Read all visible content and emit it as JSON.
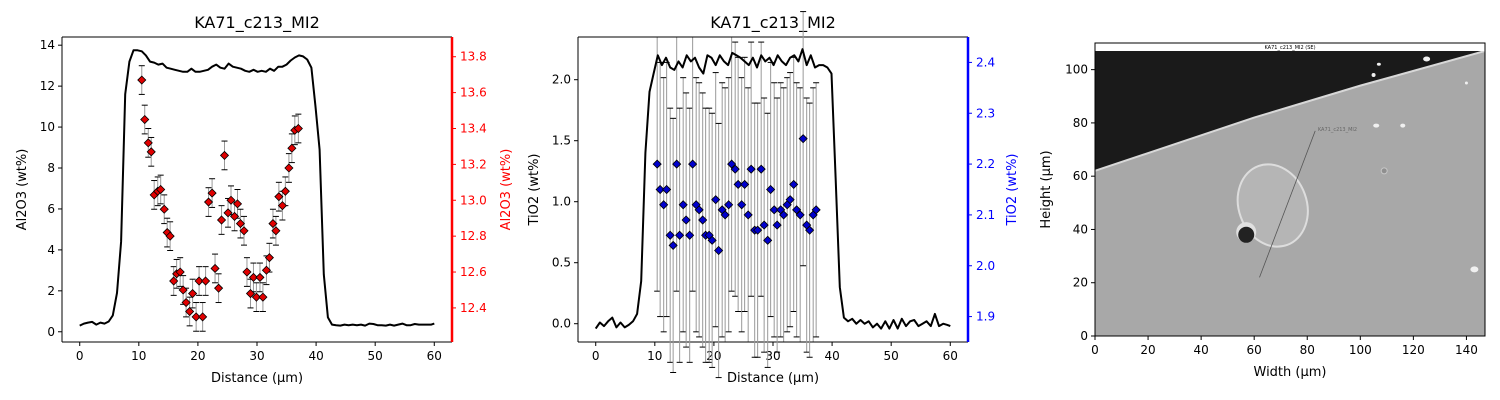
{
  "figure": {
    "panels": [
      "al2o3-profile",
      "tio2-profile",
      "sem-image"
    ]
  },
  "chart_data": [
    {
      "id": "al2o3-profile",
      "type": "line",
      "title": "KA71_c213_MI2",
      "xlabel": "Distance (µm)",
      "ylabel": "Al2O3 (wt%)",
      "y2label": "Al2O3 (wt%)",
      "xlim": [
        -3,
        63
      ],
      "ylim": [
        -0.5,
        14.4
      ],
      "y2lim": [
        12.21,
        13.91
      ],
      "xticks": [
        0,
        10,
        20,
        30,
        40,
        50,
        60
      ],
      "yticks": [
        0,
        2,
        4,
        6,
        8,
        10,
        12,
        14
      ],
      "y2ticks": [
        "12.4",
        "12.6",
        "12.8",
        "13.0",
        "13.2",
        "13.4",
        "13.6",
        "13.8"
      ],
      "colors": {
        "line": "#000000",
        "markers": "#e00000",
        "y2axis": "#ff0000",
        "errorbars": "#999999"
      },
      "grid": false,
      "series": [
        {
          "kind": "line",
          "axis": "left",
          "x": [
            0,
            0.7,
            1.4,
            2.1,
            2.8,
            3.5,
            4.2,
            4.9,
            5.6,
            6.3,
            7.0,
            7.7,
            8.4,
            9.1,
            9.8,
            10.5,
            11.2,
            11.9,
            12.6,
            13.3,
            14.0,
            14.7,
            15.4,
            16.1,
            16.8,
            17.5,
            18.2,
            18.9,
            19.6,
            20.3,
            21.0,
            21.7,
            22.4,
            23.1,
            23.8,
            24.5,
            25.2,
            25.9,
            26.6,
            27.3,
            28.0,
            28.7,
            29.4,
            30.1,
            30.8,
            31.5,
            32.2,
            32.9,
            33.6,
            34.3,
            35.0,
            35.7,
            36.4,
            37.1,
            37.8,
            38.5,
            39.2,
            39.9,
            40.6,
            41.3,
            42.0,
            42.7,
            43.4,
            44.1,
            44.8,
            45.5,
            46.2,
            46.9,
            47.6,
            48.3,
            49.0,
            49.7,
            50.4,
            51.1,
            51.8,
            52.5,
            53.2,
            53.9,
            54.6,
            55.3,
            56.0,
            56.7,
            57.4,
            58.1,
            58.8,
            59.5,
            60.0
          ],
          "values": [
            0.3,
            0.4,
            0.45,
            0.48,
            0.35,
            0.45,
            0.4,
            0.5,
            0.8,
            1.9,
            4.4,
            11.6,
            13.2,
            13.75,
            13.75,
            13.7,
            13.5,
            13.2,
            13.15,
            13.05,
            13.1,
            12.9,
            12.85,
            12.8,
            12.75,
            12.7,
            12.7,
            12.85,
            12.7,
            12.7,
            12.75,
            12.8,
            12.95,
            13.05,
            12.9,
            12.85,
            13.1,
            12.95,
            12.9,
            12.85,
            12.75,
            12.7,
            12.8,
            12.7,
            12.75,
            12.7,
            12.85,
            12.75,
            12.95,
            12.95,
            13.05,
            13.25,
            13.4,
            13.5,
            13.45,
            13.3,
            12.9,
            11.0,
            8.9,
            2.8,
            0.7,
            0.35,
            0.32,
            0.3,
            0.35,
            0.32,
            0.35,
            0.32,
            0.35,
            0.3,
            0.4,
            0.38,
            0.32,
            0.32,
            0.3,
            0.35,
            0.3,
            0.35,
            0.4,
            0.32,
            0.32,
            0.38,
            0.35,
            0.35,
            0.35,
            0.35,
            0.4
          ]
        },
        {
          "kind": "scatter_errorbar",
          "axis": "right",
          "x": [
            10.5,
            11.0,
            11.6,
            12.1,
            12.6,
            13.2,
            13.7,
            14.3,
            14.8,
            15.3,
            15.9,
            16.4,
            17.0,
            17.5,
            18.0,
            18.6,
            19.1,
            19.7,
            20.2,
            20.8,
            21.3,
            21.8,
            22.4,
            22.9,
            23.5,
            24.0,
            24.5,
            25.1,
            25.6,
            26.2,
            26.7,
            27.2,
            27.8,
            28.3,
            28.9,
            29.4,
            29.9,
            30.5,
            31.0,
            31.6,
            32.1,
            32.7,
            33.2,
            33.7,
            34.3,
            34.8,
            35.4,
            35.9,
            36.4,
            37.0
          ],
          "values": [
            13.67,
            13.45,
            13.32,
            13.27,
            13.03,
            13.05,
            13.06,
            12.95,
            12.82,
            12.8,
            12.55,
            12.59,
            12.6,
            12.5,
            12.43,
            12.38,
            12.48,
            12.35,
            12.55,
            12.35,
            12.55,
            12.99,
            13.04,
            12.62,
            12.51,
            12.89,
            13.25,
            12.93,
            13.0,
            12.91,
            12.98,
            12.87,
            12.83,
            12.6,
            12.48,
            12.57,
            12.46,
            12.57,
            12.46,
            12.61,
            12.68,
            12.87,
            12.83,
            13.02,
            12.97,
            13.05,
            13.18,
            13.29,
            13.39,
            13.4
          ],
          "errors": [
            0.08,
            0.08,
            0.08,
            0.08,
            0.08,
            0.08,
            0.08,
            0.08,
            0.08,
            0.08,
            0.08,
            0.08,
            0.08,
            0.08,
            0.08,
            0.08,
            0.08,
            0.08,
            0.08,
            0.08,
            0.08,
            0.08,
            0.08,
            0.08,
            0.08,
            0.08,
            0.08,
            0.08,
            0.08,
            0.08,
            0.08,
            0.08,
            0.08,
            0.08,
            0.08,
            0.08,
            0.08,
            0.08,
            0.08,
            0.08,
            0.08,
            0.08,
            0.08,
            0.08,
            0.08,
            0.08,
            0.08,
            0.08,
            0.08,
            0.08
          ]
        }
      ]
    },
    {
      "id": "tio2-profile",
      "type": "line",
      "title": "KA71_c213_MI2",
      "xlabel": "Distance (µm)",
      "ylabel": "TiO2 (wt%)",
      "y2label": "TiO2 (wt%)",
      "xlim": [
        -3,
        63
      ],
      "ylim": [
        -0.15,
        2.35
      ],
      "y2lim": [
        1.85,
        2.45
      ],
      "xticks": [
        0,
        10,
        20,
        30,
        40,
        50,
        60
      ],
      "yticks": [
        "0.0",
        "0.5",
        "1.0",
        "1.5",
        "2.0"
      ],
      "y2ticks": [
        "1.9",
        "2.0",
        "2.1",
        "2.2",
        "2.3",
        "2.4"
      ],
      "colors": {
        "line": "#000000",
        "markers": "#0000cc",
        "y2axis": "#0000ff",
        "errorbars": "#999999"
      },
      "grid": false,
      "series": [
        {
          "kind": "line",
          "axis": "left",
          "x": [
            0,
            0.7,
            1.4,
            2.1,
            2.8,
            3.5,
            4.2,
            4.9,
            5.6,
            6.3,
            7.0,
            7.7,
            8.4,
            9.1,
            9.8,
            10.5,
            11.2,
            11.9,
            12.6,
            13.3,
            14.0,
            14.7,
            15.4,
            16.1,
            16.8,
            17.5,
            18.2,
            18.9,
            19.6,
            20.3,
            21.0,
            21.7,
            22.4,
            23.1,
            23.8,
            24.5,
            25.2,
            25.9,
            26.6,
            27.3,
            28.0,
            28.7,
            29.4,
            30.1,
            30.8,
            31.5,
            32.2,
            32.9,
            33.6,
            34.3,
            35.0,
            35.7,
            36.4,
            37.1,
            37.8,
            38.5,
            39.2,
            39.9,
            40.6,
            41.3,
            42.0,
            42.7,
            43.4,
            44.1,
            44.8,
            45.5,
            46.2,
            46.9,
            47.6,
            48.3,
            49.0,
            49.7,
            50.4,
            51.1,
            51.8,
            52.5,
            53.2,
            53.9,
            54.6,
            55.3,
            56.0,
            56.7,
            57.4,
            58.1,
            58.8,
            59.5,
            60.0
          ],
          "values": [
            -0.04,
            0.01,
            -0.02,
            0.02,
            0.05,
            -0.03,
            0.01,
            -0.03,
            -0.01,
            0.02,
            0.08,
            0.35,
            1.4,
            1.9,
            2.05,
            2.2,
            2.12,
            2.18,
            2.1,
            2.08,
            2.15,
            2.1,
            2.2,
            2.15,
            2.18,
            2.1,
            2.05,
            2.2,
            2.18,
            2.12,
            2.2,
            2.15,
            2.12,
            2.22,
            2.2,
            2.18,
            2.15,
            2.12,
            2.18,
            2.1,
            2.2,
            2.15,
            2.18,
            2.12,
            2.2,
            2.15,
            2.12,
            2.18,
            2.2,
            2.15,
            2.25,
            2.12,
            2.2,
            2.1,
            2.12,
            2.12,
            2.1,
            2.05,
            1.2,
            0.3,
            0.05,
            0.02,
            0.04,
            0.0,
            0.03,
            0.0,
            0.02,
            -0.03,
            0.0,
            -0.04,
            0.02,
            -0.04,
            0.03,
            -0.04,
            0.04,
            -0.02,
            0.02,
            0.03,
            -0.02,
            0.0,
            0.02,
            -0.02,
            0.08,
            -0.02,
            0.0,
            -0.01,
            -0.02
          ]
        },
        {
          "kind": "scatter_errorbar",
          "axis": "right",
          "x": [
            10.4,
            10.9,
            11.5,
            12.0,
            12.6,
            13.1,
            13.7,
            14.2,
            14.8,
            15.3,
            15.9,
            16.4,
            17.0,
            17.5,
            18.1,
            18.6,
            19.2,
            19.7,
            20.3,
            20.8,
            21.4,
            21.9,
            22.5,
            23.0,
            23.6,
            24.1,
            24.7,
            25.2,
            25.8,
            26.3,
            26.9,
            27.4,
            28.0,
            28.5,
            29.1,
            29.6,
            30.2,
            30.7,
            31.3,
            31.8,
            32.4,
            32.9,
            33.5,
            34.0,
            34.6,
            35.1,
            35.7,
            36.2,
            36.8,
            37.3
          ],
          "values": [
            2.2,
            2.15,
            2.12,
            2.15,
            2.06,
            2.04,
            2.2,
            2.06,
            2.12,
            2.09,
            2.06,
            2.2,
            2.12,
            2.11,
            2.09,
            2.06,
            2.06,
            2.05,
            2.13,
            2.03,
            2.11,
            2.1,
            2.12,
            2.2,
            2.19,
            2.16,
            2.12,
            2.16,
            2.1,
            2.19,
            2.07,
            2.07,
            2.19,
            2.08,
            2.05,
            2.15,
            2.11,
            2.08,
            2.11,
            2.1,
            2.12,
            2.13,
            2.16,
            2.11,
            2.1,
            2.25,
            2.08,
            2.07,
            2.1,
            2.11
          ],
          "errors": [
            0.25,
            0.25,
            0.25,
            0.25,
            0.25,
            0.25,
            0.25,
            0.25,
            0.25,
            0.25,
            0.25,
            0.25,
            0.25,
            0.25,
            0.25,
            0.25,
            0.25,
            0.25,
            0.25,
            0.25,
            0.25,
            0.25,
            0.25,
            0.25,
            0.25,
            0.25,
            0.25,
            0.25,
            0.25,
            0.25,
            0.25,
            0.25,
            0.25,
            0.25,
            0.25,
            0.25,
            0.25,
            0.25,
            0.25,
            0.25,
            0.25,
            0.25,
            0.25,
            0.25,
            0.25,
            0.25,
            0.25,
            0.25,
            0.25,
            0.25
          ]
        }
      ]
    },
    {
      "id": "sem-image",
      "type": "image",
      "xlabel": "Width (µm)",
      "ylabel": "Height (µm)",
      "xlim": [
        0,
        147
      ],
      "ylim": [
        0,
        110
      ],
      "xticks": [
        0,
        20,
        40,
        60,
        80,
        100,
        120,
        140
      ],
      "yticks": [
        0,
        20,
        40,
        60,
        80,
        100
      ],
      "image_caption": "KA71_c213_MI2 (SE)",
      "line_label": "KA71_c213_MI2",
      "colors": {
        "background": "#a8a8a8",
        "dark_region": "#1a1a1a",
        "inclusion": "#b5b5b5",
        "bubble": "#222222"
      }
    }
  ]
}
